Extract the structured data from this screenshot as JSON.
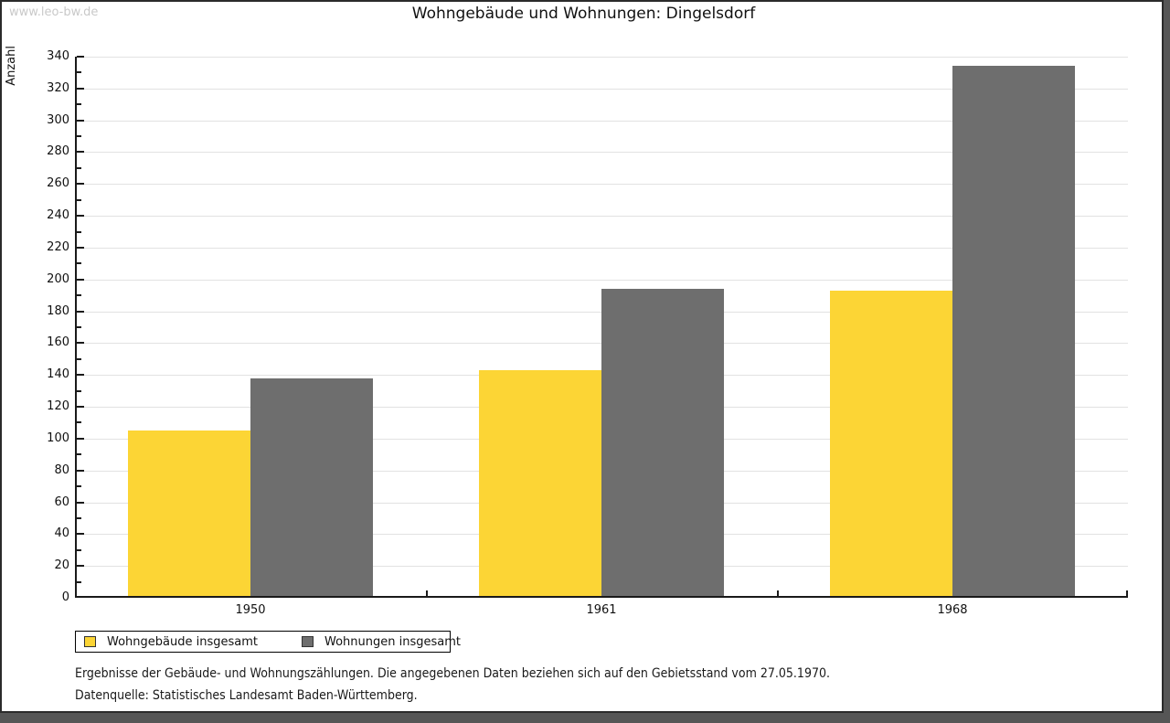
{
  "watermark": "www.leo-bw.de",
  "title": "Wohngebäude und Wohnungen: Dingelsdorf",
  "chart_data": {
    "type": "bar",
    "title": "Wohngebäude und Wohnungen: Dingelsdorf",
    "categories": [
      "1950",
      "1961",
      "1968"
    ],
    "series": [
      {
        "name": "Wohngebäude insgesamt",
        "color": "#fcd535",
        "values": [
          105,
          143,
          193
        ]
      },
      {
        "name": "Wohnungen insgesamt",
        "color": "#6e6e6e",
        "values": [
          138,
          194,
          334
        ]
      }
    ],
    "xlabel": "",
    "ylabel": "Anzahl",
    "ylim": [
      0,
      340
    ],
    "ytick_step": 20,
    "minor_tick_step": 10,
    "grid": true,
    "gridline_color": "#e2e2e2",
    "axis_color": "#1a1a1a",
    "legend_position": "bottom-left"
  },
  "footnotes": [
    "Ergebnisse der Gebäude- und Wohnungszählungen. Die angegebenen Daten beziehen sich auf den Gebietsstand vom 27.05.1970.",
    "Datenquelle: Statistisches Landesamt Baden-Württemberg."
  ]
}
